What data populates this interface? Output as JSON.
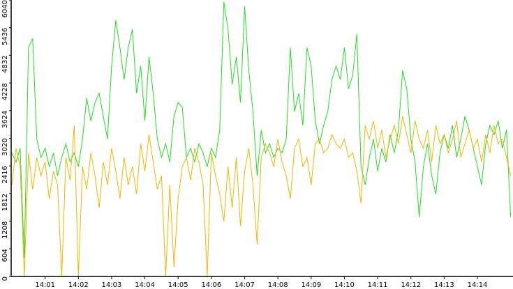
{
  "chart_data": {
    "type": "line",
    "x": [
      0,
      0.125,
      0.25,
      0.375,
      0.5,
      0.625,
      0.75,
      0.875,
      1,
      1.125,
      1.25,
      1.375,
      1.5,
      1.625,
      1.75,
      1.875,
      2,
      2.125,
      2.25,
      2.375,
      2.5,
      2.625,
      2.75,
      2.875,
      3,
      3.125,
      3.25,
      3.375,
      3.5,
      3.625,
      3.75,
      3.875,
      4,
      4.125,
      4.25,
      4.375,
      4.5,
      4.625,
      4.75,
      4.875,
      5,
      5.125,
      5.25,
      5.375,
      5.5,
      5.625,
      5.75,
      5.875,
      6,
      6.125,
      6.25,
      6.375,
      6.5,
      6.625,
      6.75,
      6.875,
      7,
      7.125,
      7.25,
      7.375,
      7.5,
      7.625,
      7.75,
      7.875,
      8,
      8.125,
      8.25,
      8.375,
      8.5,
      8.625,
      8.75,
      8.875,
      9,
      9.125,
      9.25,
      9.375,
      9.5,
      9.625,
      9.75,
      9.875,
      10,
      10.125,
      10.25,
      10.375,
      10.5,
      10.625,
      10.75,
      10.875,
      11,
      11.125,
      11.25,
      11.375,
      11.5,
      11.625,
      11.75,
      11.875,
      12,
      12.125,
      12.25,
      12.375,
      12.5,
      12.625,
      12.75,
      12.875,
      13,
      13.125,
      13.25,
      13.375,
      13.5,
      13.625,
      13.75,
      13.875,
      14,
      14.125,
      14.25,
      14.375,
      14.5,
      14.625,
      14.75,
      14.875,
      15
    ],
    "series": [
      {
        "color": "#22dd22",
        "values": [
          2700,
          2500,
          2800,
          400,
          5000,
          5200,
          3000,
          2600,
          2800,
          2400,
          2700,
          2200,
          2600,
          2900,
          2500,
          2700,
          2400,
          3000,
          3900,
          3400,
          3800,
          4000,
          3500,
          3000,
          4600,
          5600,
          5000,
          4300,
          5000,
          5400,
          4000,
          4600,
          3400,
          4800,
          4000,
          3000,
          2600,
          2900,
          2500,
          3500,
          3800,
          3700,
          2600,
          2800,
          2500,
          2900,
          2700,
          2400,
          2800,
          2600,
          3200,
          6000,
          5400,
          4200,
          4800,
          3800,
          5900,
          4500,
          3600,
          2200,
          3200,
          2700,
          2900,
          2600,
          2800,
          2700,
          3000,
          5000,
          3600,
          4000,
          3300,
          5000,
          4600,
          3400,
          2900,
          3300,
          3600,
          4300,
          4600,
          4300,
          5000,
          4100,
          4400,
          5300,
          2400,
          2000,
          2600,
          3000,
          2300,
          2800,
          2500,
          3100,
          2700,
          3200,
          4500,
          4100,
          3000,
          2500,
          1300,
          2400,
          2900,
          2200,
          1800,
          2700,
          3100,
          2800,
          3300,
          2600,
          3000,
          3500,
          3200,
          2800,
          2400,
          2000,
          2900,
          3300,
          3100,
          3400,
          2800,
          3200,
          1300
        ]
      },
      {
        "color": "#f5b400",
        "values": [
          2000,
          2800,
          2400,
          0,
          2700,
          1900,
          2600,
          2200,
          2500,
          1700,
          2300,
          2000,
          0,
          2600,
          2100,
          3300,
          0,
          2400,
          1900,
          2700,
          2200,
          1500,
          2500,
          2000,
          2800,
          2300,
          1700,
          2600,
          2000,
          2400,
          1800,
          2900,
          2300,
          3100,
          2500,
          1900,
          2200,
          0,
          2000,
          200,
          1700,
          2400,
          2600,
          2100,
          2800,
          2500,
          2000,
          0,
          2700,
          2200,
          1800,
          1200,
          2400,
          1500,
          2600,
          1100,
          2300,
          2800,
          2000,
          700,
          2600,
          2900,
          2700,
          2400,
          3000,
          2500,
          2200,
          1700,
          2800,
          3000,
          2400,
          2600,
          2000,
          2900,
          3000,
          2700,
          2800,
          3100,
          2900,
          2800,
          3000,
          2600,
          2700,
          2300,
          1600,
          3300,
          3000,
          3400,
          2800,
          3200,
          2600,
          3000,
          3300,
          2900,
          3500,
          3100,
          2700,
          3400,
          3000,
          2800,
          3200,
          2500,
          3300,
          2900,
          3100,
          2700,
          3000,
          3400,
          2600,
          2900,
          3200,
          2800,
          3000,
          2500,
          3100,
          2700,
          3300,
          2900,
          3000,
          2600,
          2200
        ]
      }
    ],
    "xlim": [
      0,
      15.07
    ],
    "xticks": [
      {
        "value": 1,
        "label": "14:01"
      },
      {
        "value": 2,
        "label": "14:02"
      },
      {
        "value": 3,
        "label": "14:03"
      },
      {
        "value": 4,
        "label": "14:04"
      },
      {
        "value": 5,
        "label": "14:05"
      },
      {
        "value": 6,
        "label": "14:06"
      },
      {
        "value": 7,
        "label": "14:07"
      },
      {
        "value": 8,
        "label": "14:08"
      },
      {
        "value": 9,
        "label": "14:09"
      },
      {
        "value": 10,
        "label": "14:10"
      },
      {
        "value": 11,
        "label": "14:11"
      },
      {
        "value": 12,
        "label": "14:12"
      },
      {
        "value": 13,
        "label": "14:13"
      },
      {
        "value": 14,
        "label": "14:14"
      }
    ],
    "ylim": [
      0,
      6040
    ],
    "yticks": [
      0,
      604,
      1208,
      1812,
      2416,
      3020,
      3624,
      4228,
      4832,
      5436,
      6040
    ]
  }
}
